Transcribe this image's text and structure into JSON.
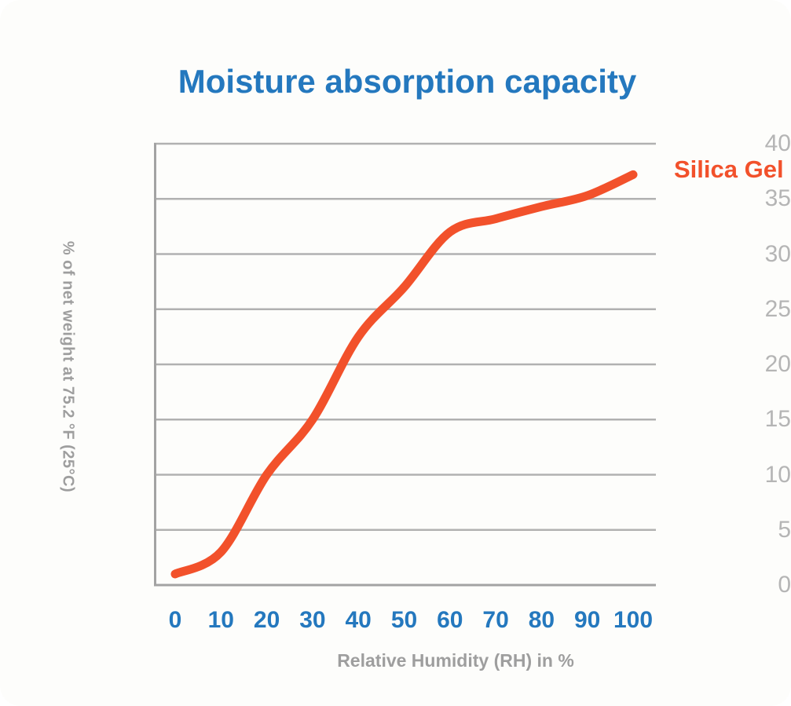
{
  "title": "Moisture absorption capacity",
  "colors": {
    "title_blue": "#2478be",
    "line_orange": "#f2512b",
    "x_tick_blue": "#2478be",
    "y_tick_gray": "#b5b5b5",
    "axis_label_gray": "#9e9e9e",
    "gridline_gray": "#b1b1b1",
    "axis_line_gray": "#a3a3a3",
    "background": "#fdfdfb"
  },
  "chart_data": {
    "type": "line",
    "title": "Moisture absorption capacity",
    "xlabel": "Relative Humidity (RH) in %",
    "ylabel": "% of net weight at 75.2 °F (25°C)",
    "x": [
      0,
      10,
      20,
      30,
      40,
      50,
      60,
      70,
      80,
      90,
      100
    ],
    "series": [
      {
        "name": "Silica Gel",
        "color": "#f2512b",
        "values": [
          1,
          3,
          10,
          15,
          22.5,
          27,
          32,
          33.2,
          34.3,
          35.3,
          37.2
        ]
      }
    ],
    "xlim": [
      0,
      100
    ],
    "ylim": [
      0,
      40
    ],
    "x_ticks": [
      0,
      10,
      20,
      30,
      40,
      50,
      60,
      70,
      80,
      90,
      100
    ],
    "y_ticks": [
      0,
      5,
      10,
      15,
      20,
      25,
      30,
      35,
      40
    ],
    "grid": "horizontal-only",
    "legend_position": "right-of-line-end"
  }
}
